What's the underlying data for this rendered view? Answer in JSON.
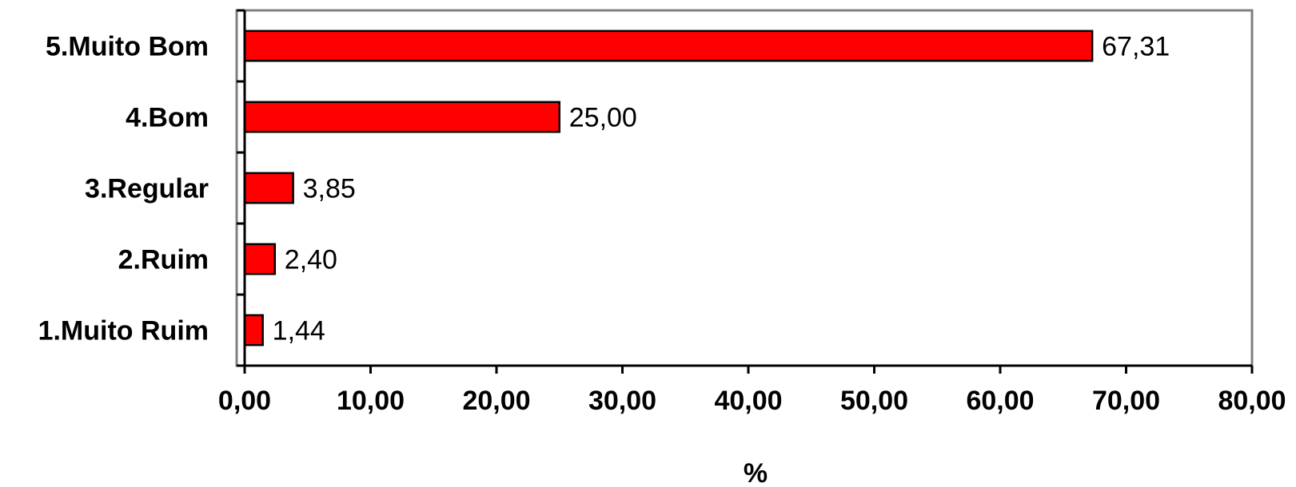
{
  "chart_data": {
    "type": "bar",
    "orientation": "horizontal",
    "categories": [
      "5.Muito Bom",
      "4.Bom",
      "3.Regular",
      "2.Ruim",
      "1.Muito Ruim"
    ],
    "values": [
      67.31,
      25.0,
      3.85,
      2.4,
      1.44
    ],
    "data_labels": [
      "67,31",
      "25,00",
      "3,85",
      "2,40",
      "1,44"
    ],
    "xlabel": "%",
    "xlim": [
      0,
      80
    ],
    "x_ticks": [
      0,
      10,
      20,
      30,
      40,
      50,
      60,
      70,
      80
    ],
    "x_tick_labels": [
      "0,00",
      "10,00",
      "20,00",
      "30,00",
      "40,00",
      "50,00",
      "60,00",
      "70,00",
      "80,00"
    ],
    "grid": false,
    "legend": "none",
    "colors": {
      "bar_fill": "#ff0000",
      "bar_stroke": "#000000",
      "plot_border": "#808080",
      "axis": "#000000"
    }
  }
}
